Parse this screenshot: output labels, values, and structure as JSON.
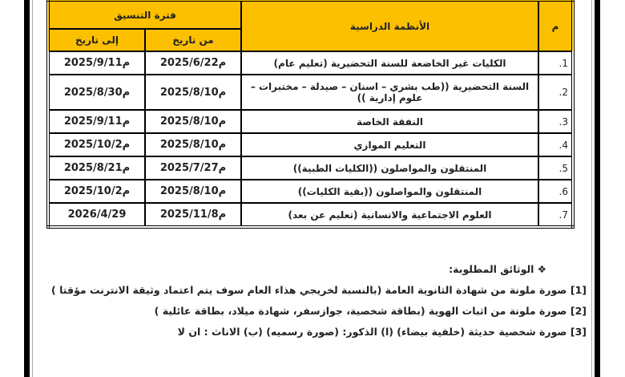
{
  "table": {
    "header": {
      "num": "م",
      "system": "الأنظمة الدراسية",
      "period": "فترة التنسيق",
      "from": "من تاريخ",
      "to": "إلى تاريخ"
    },
    "rows": [
      {
        "num": "1.",
        "system": "الكليات غير الخاضعة للسنة التحضيرية (تعليم عام)",
        "from": "2025/6/22م",
        "to": "2025/9/11م"
      },
      {
        "num": "2.",
        "system": "السنة التحضيرية ((طب بشري – اسنان – صيدلة – مختبرات – علوم إدارية ))",
        "from": "2025/8/10م",
        "to": "2025/8/30م"
      },
      {
        "num": "3.",
        "system": "النفقة الخاصة",
        "from": "2025/8/10م",
        "to": "2025/9/11م"
      },
      {
        "num": "4.",
        "system": "التعليم الموازي",
        "from": "2025/8/10م",
        "to": "2025/10/2م"
      },
      {
        "num": "5.",
        "system": "المنتقلون والمواصلون ((الكليات الطبية))",
        "from": "2025/7/27م",
        "to": "2025/8/21م"
      },
      {
        "num": "6.",
        "system": "المنتقلون والمواصلون ((بقية الكليات))",
        "from": "2025/8/10م",
        "to": "2025/10/2م"
      },
      {
        "num": "7.",
        "system": "العلوم الاجتماعية والانسانية (تعليم عن بعد)",
        "from": "2025/11/8م",
        "to": "2026/4/29"
      }
    ]
  },
  "documents": {
    "title": "❖ الوثائق المطلوبة:",
    "items": [
      "[1] صورة ملونة من شهادة الثانوية العامة (بالنسبة لخريجي هذاء العام سوف يتم اعتماد وثيقة الانترنت مؤقتا )",
      "[2] صورة ملونة من اثبات الهوية (بطاقة شخصية، جوازسفر، شهادة ميلاد، بطاقة عائلية )",
      "[3] صورة شخصية حديثة (خلفية بيضاء) (ا) الذكور: (صورة رسميه) (ب) الاناث : ان لا"
    ]
  }
}
